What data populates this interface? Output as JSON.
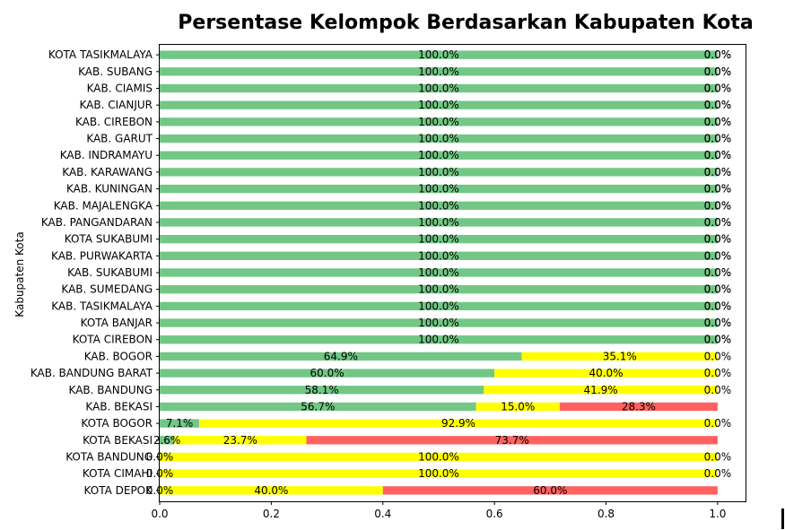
{
  "chart_data": {
    "type": "bar",
    "orientation": "horizontal",
    "stacked": true,
    "title": "Persentase Kelompok Berdasarkan Kabupaten Kota",
    "xlabel": "",
    "ylabel": "Kabupaten Kota",
    "xlim": [
      0,
      1.05
    ],
    "x_ticks": [
      "0.0",
      "0.2",
      "0.4",
      "0.6",
      "0.8",
      "1.0"
    ],
    "grid": false,
    "legend": "none",
    "categories": [
      "KOTA TASIKMALAYA",
      "KAB. SUBANG",
      "KAB. CIAMIS",
      "KAB. CIANJUR",
      "KAB. CIREBON",
      "KAB. GARUT",
      "KAB. INDRAMAYU",
      "KAB. KARAWANG",
      "KAB. KUNINGAN",
      "KAB. MAJALENGKA",
      "KAB. PANGANDARAN",
      "KOTA SUKABUMI",
      "KAB. PURWAKARTA",
      "KAB. SUKABUMI",
      "KAB. SUMEDANG",
      "KAB. TASIKMALAYA",
      "KOTA BANJAR",
      "KOTA CIREBON",
      "KAB. BOGOR",
      "KAB. BANDUNG BARAT",
      "KAB. BANDUNG",
      "KAB. BEKASI",
      "KOTA BOGOR",
      "KOTA BEKASI",
      "KOTA BANDUNG",
      "KOTA CIMAHI",
      "KOTA DEPOK"
    ],
    "series": [
      {
        "color": "#72c785",
        "values": [
          1,
          1,
          1,
          1,
          1,
          1,
          1,
          1,
          1,
          1,
          1,
          1,
          1,
          1,
          1,
          1,
          1,
          1,
          0.649,
          0.6,
          0.581,
          0.567,
          0.071,
          0.026,
          0,
          0,
          0
        ],
        "labels": [
          "100.0%",
          "100.0%",
          "100.0%",
          "100.0%",
          "100.0%",
          "100.0%",
          "100.0%",
          "100.0%",
          "100.0%",
          "100.0%",
          "100.0%",
          "100.0%",
          "100.0%",
          "100.0%",
          "100.0%",
          "100.0%",
          "100.0%",
          "100.0%",
          "64.9%",
          "60.0%",
          "58.1%",
          "56.7%",
          "7.1%",
          "2.6%",
          "0.0%",
          "0.0%",
          "0.0%"
        ]
      },
      {
        "color": "#ffff00",
        "values": [
          0,
          0,
          0,
          0,
          0,
          0,
          0,
          0,
          0,
          0,
          0,
          0,
          0,
          0,
          0,
          0,
          0,
          0,
          0.351,
          0.4,
          0.419,
          0.15,
          0.929,
          0.237,
          1,
          1,
          0.4
        ],
        "labels": [
          "0.0%",
          "0.0%",
          "0.0%",
          "0.0%",
          "0.0%",
          "0.0%",
          "0.0%",
          "0.0%",
          "0.0%",
          "0.0%",
          "0.0%",
          "0.0%",
          "0.0%",
          "0.0%",
          "0.0%",
          "0.0%",
          "0.0%",
          "0.0%",
          "35.1%",
          "40.0%",
          "41.9%",
          "15.0%",
          "92.9%",
          "23.7%",
          "100.0%",
          "100.0%",
          "40.0%"
        ]
      },
      {
        "color": "#ff6161",
        "values": [
          0,
          0,
          0,
          0,
          0,
          0,
          0,
          0,
          0,
          0,
          0,
          0,
          0,
          0,
          0,
          0,
          0,
          0,
          0,
          0,
          0,
          0.283,
          0,
          0.737,
          0,
          0,
          0.6
        ],
        "labels": [
          "0.0%",
          "0.0%",
          "0.0%",
          "0.0%",
          "0.0%",
          "0.0%",
          "0.0%",
          "0.0%",
          "0.0%",
          "0.0%",
          "0.0%",
          "0.0%",
          "0.0%",
          "0.0%",
          "0.0%",
          "0.0%",
          "0.0%",
          "0.0%",
          "0.0%",
          "0.0%",
          "0.0%",
          "28.3%",
          "0.0%",
          "73.7%",
          "0.0%",
          "0.0%",
          "60.0%"
        ]
      }
    ]
  }
}
